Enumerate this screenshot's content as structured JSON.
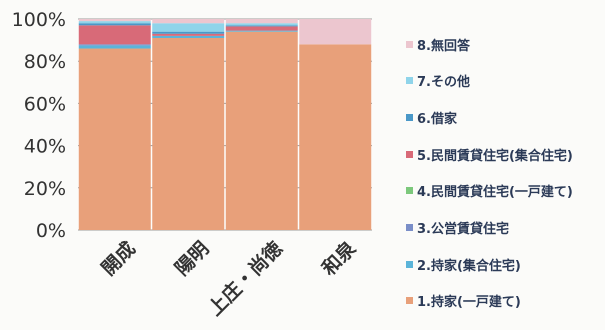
{
  "chart_data": {
    "type": "bar",
    "stacked": true,
    "percent": true,
    "categories": [
      "開成",
      "陽明",
      "上庄・尚徳",
      "和泉"
    ],
    "y_ticks": [
      "0%",
      "20%",
      "40%",
      "60%",
      "80%",
      "100%"
    ],
    "ylim": [
      0,
      100
    ],
    "grid": true,
    "legend_position": "right",
    "series": [
      {
        "name": "1.持家(一戸建て)",
        "color": "#e8a07a",
        "values": [
          86,
          91,
          94,
          88
        ]
      },
      {
        "name": "2.持家(集合住宅)",
        "color": "#5bb4d9",
        "values": [
          1.5,
          1,
          0.5,
          0
        ]
      },
      {
        "name": "3.公営賃貸住宅",
        "color": "#7a8ec8",
        "values": [
          0.5,
          0,
          0,
          0
        ]
      },
      {
        "name": "4.民間賃貸住宅(一戸建て)",
        "color": "#7cc87c",
        "values": [
          0,
          0,
          0,
          0
        ]
      },
      {
        "name": "5.民間賃貸住宅(集合住宅)",
        "color": "#d86a78",
        "values": [
          9,
          1,
          2,
          0
        ]
      },
      {
        "name": "6.借家",
        "color": "#4a98c8",
        "values": [
          1,
          1,
          0.5,
          0
        ]
      },
      {
        "name": "7.その他",
        "color": "#8fd4ea",
        "values": [
          1,
          4,
          1,
          0
        ]
      },
      {
        "name": "8.無回答",
        "color": "#ecc6cf",
        "values": [
          1,
          2,
          2,
          12
        ]
      }
    ]
  }
}
